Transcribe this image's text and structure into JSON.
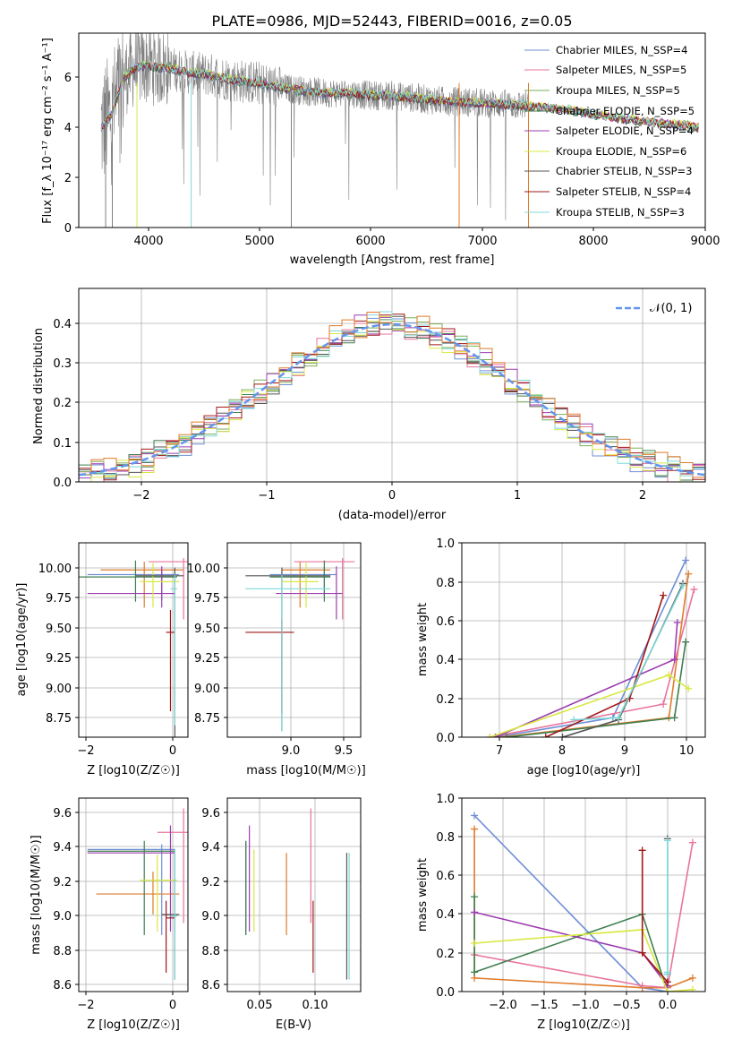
{
  "title": "PLATE=0986, MJD=52443, FIBERID=0016, z=0.05",
  "colors": {
    "chabrier_miles": "#6f8fd6",
    "salpeter_miles": "#e8739c",
    "kroupa_miles": "#7fae58",
    "chabrier_elodie": "#3f7f4f",
    "salpeter_elodie": "#9c3cb0",
    "kroupa_elodie": "#d8e840",
    "chabrier_stelib": "#555555",
    "salpeter_stelib": "#a01818",
    "kroupa_stelib": "#7fd8d8",
    "data_spectrum": "#808080",
    "normal_curve": "#6495ed",
    "orange_series": "#e07b2a"
  },
  "chart_data": [
    {
      "id": "spectrum",
      "type": "line",
      "xlabel": "wavelength [Angstrom, rest frame]",
      "ylabel": "Flux [f_λ 10⁻¹⁷ erg cm⁻² s⁻¹ A⁻¹]",
      "xlim": [
        3400,
        9000
      ],
      "ylim": [
        0,
        7.8
      ],
      "xticks": [
        "4000",
        "5000",
        "6000",
        "7000",
        "8000",
        "9000"
      ],
      "yticks": [
        "0",
        "2",
        "4",
        "6"
      ],
      "legend": [
        "Chabrier MILES, N_SSP=4",
        "Salpeter MILES, N_SSP=5",
        "Kroupa MILES, N_SSP=5",
        "Chabrier ELODIE, N_SSP=5",
        "Salpeter ELODIE, N_SSP=4",
        "Kroupa ELODIE, N_SSP=6",
        "Chabrier STELIB, N_SSP=3",
        "Salpeter STELIB, N_SSP=4",
        "Kroupa STELIB, N_SSP=3"
      ],
      "legend_placement": "upper-right",
      "model_continuum": {
        "x": [
          3600,
          3700,
          3800,
          3900,
          4000,
          4200,
          4400,
          4600,
          4800,
          5000,
          5200,
          5400,
          5600,
          5800,
          6000,
          6200,
          6400,
          6600,
          6800,
          7000,
          7200,
          7400,
          7600,
          7800,
          8000,
          8200,
          8400,
          8600,
          8800,
          8950
        ],
        "y": [
          4.0,
          4.6,
          6.0,
          6.4,
          6.5,
          6.4,
          6.2,
          6.1,
          5.9,
          5.8,
          5.6,
          5.5,
          5.4,
          5.4,
          5.3,
          5.3,
          5.2,
          5.1,
          5.05,
          5.0,
          4.95,
          4.9,
          4.8,
          4.7,
          4.55,
          4.4,
          4.3,
          4.2,
          4.1,
          4.0
        ]
      }
    },
    {
      "id": "residuals",
      "type": "histogram",
      "xlabel": "(data-model)/error",
      "ylabel": "Normed distribution",
      "xlim": [
        -2.5,
        2.5
      ],
      "ylim": [
        0,
        0.49
      ],
      "xticks": [
        "−2",
        "−1",
        "0",
        "1",
        "2"
      ],
      "yticks": [
        "0.0",
        "0.1",
        "0.2",
        "0.3",
        "0.4"
      ],
      "legend": [
        "𝒩(0, 1)"
      ],
      "legend_placement": "upper-right",
      "grid": true
    },
    {
      "id": "age_vs_Z",
      "type": "scatter",
      "xlabel": "Z [log10(Z/Z☉)]",
      "ylabel": "age  [log10(age/yr)]",
      "xlim": [
        -2.2,
        0.3
      ],
      "ylim": [
        8.6,
        10.25
      ],
      "xticks": [
        "−2",
        "0"
      ],
      "yticks": [
        "8.75",
        "9.00",
        "9.25",
        "9.50",
        "9.75",
        "10.00"
      ],
      "grid": true
    },
    {
      "id": "age_vs_mass",
      "type": "scatter",
      "xlabel": "mass [log10(M/M☉)]",
      "xlim": [
        8.55,
        9.65
      ],
      "ylim": [
        8.6,
        10.25
      ],
      "xticks": [
        "9.0",
        "9.5"
      ],
      "yticks": [
        "8.75",
        "9.00",
        "9.25",
        "9.50",
        "9.75",
        "10.00"
      ],
      "grid": true
    },
    {
      "id": "mass_weight_vs_age",
      "type": "line",
      "xlabel": "age  [log10(age/yr)]",
      "ylabel": "mass weight",
      "xlim": [
        6.0,
        10.35
      ],
      "ylim": [
        0,
        1.0
      ],
      "xticks": [
        "7",
        "8",
        "9",
        "10"
      ],
      "yticks": [
        "0.0",
        "0.2",
        "0.4",
        "0.6",
        "0.8",
        "1.0"
      ],
      "grid": true,
      "series": [
        {
          "color_key": "chabrier_miles",
          "x": [
            6.6,
            8.7,
            10.0
          ],
          "y": [
            0.0,
            0.1,
            0.91
          ]
        },
        {
          "color_key": "orange_series",
          "x": [
            6.7,
            9.7,
            10.05
          ],
          "y": [
            0.0,
            0.1,
            0.84
          ]
        },
        {
          "color_key": "salpeter_miles",
          "x": [
            6.5,
            9.6,
            10.15
          ],
          "y": [
            0.0,
            0.17,
            0.76
          ]
        },
        {
          "color_key": "chabrier_elodie",
          "x": [
            6.8,
            9.8,
            10.0
          ],
          "y": [
            0.0,
            0.1,
            0.49
          ]
        },
        {
          "color_key": "salpeter_elodie",
          "x": [
            6.6,
            9.8,
            9.85
          ],
          "y": [
            0.0,
            0.4,
            0.59
          ]
        },
        {
          "color_key": "kroupa_elodie",
          "x": [
            6.5,
            9.7,
            10.05
          ],
          "y": [
            0.0,
            0.32,
            0.25
          ]
        },
        {
          "color_key": "chabrier_stelib",
          "x": [
            7.8,
            8.8,
            9.95
          ],
          "y": [
            0.0,
            0.09,
            0.79
          ]
        },
        {
          "color_key": "salpeter_stelib",
          "x": [
            7.5,
            9.0,
            9.6
          ],
          "y": [
            0.0,
            0.2,
            0.73
          ]
        },
        {
          "color_key": "kroupa_stelib",
          "x": [
            8.0,
            8.8,
            9.95
          ],
          "y": [
            0.09,
            0.1,
            0.78
          ]
        }
      ]
    },
    {
      "id": "mass_vs_Z",
      "type": "scatter",
      "xlabel": "Z [log10(Z/Z☉)]",
      "ylabel": "mass [log10(M/M☉)]",
      "xlim": [
        -2.2,
        0.3
      ],
      "ylim": [
        8.55,
        9.68
      ],
      "xticks": [
        "−2",
        "0"
      ],
      "yticks": [
        "8.6",
        "8.8",
        "9.0",
        "9.2",
        "9.4",
        "9.6"
      ],
      "grid": true
    },
    {
      "id": "mass_vs_ebv",
      "type": "scatter",
      "xlabel": "E(B-V)",
      "xlim": [
        0.03,
        0.145
      ],
      "ylim": [
        8.55,
        9.68
      ],
      "xticks": [
        "0.05",
        "0.10"
      ],
      "yticks": [
        "8.6",
        "8.8",
        "9.0",
        "9.2",
        "9.4",
        "9.6"
      ],
      "grid": true
    },
    {
      "id": "mass_weight_vs_Z",
      "type": "line",
      "xlabel": "Z [log10(Z/Z☉)]",
      "ylabel": "mass weight",
      "xlim": [
        -2.45,
        0.45
      ],
      "ylim": [
        0,
        1.0
      ],
      "xticks": [
        "−2.0",
        "−1.5",
        "−1.0",
        "−0.5",
        "0.0"
      ],
      "yticks": [
        "0.0",
        "0.2",
        "0.4",
        "0.6",
        "0.8",
        "1.0"
      ],
      "grid": true,
      "series": [
        {
          "color_key": "chabrier_miles",
          "x": [
            -2.3,
            -0.3,
            0.0
          ],
          "y": [
            0.91,
            0.02,
            0.0
          ]
        },
        {
          "color_key": "orange_series",
          "x": [
            -2.3,
            -2.3,
            -0.3,
            0.0,
            0.3
          ],
          "y": [
            0.84,
            0.07,
            0.02,
            0.02,
            0.07
          ]
        },
        {
          "color_key": "salpeter_miles",
          "x": [
            -2.3,
            -0.3,
            0.0,
            0.3
          ],
          "y": [
            0.19,
            0.03,
            0.02,
            0.77
          ]
        },
        {
          "color_key": "chabrier_elodie",
          "x": [
            -2.3,
            -2.3,
            -0.3,
            0.0
          ],
          "y": [
            0.49,
            0.1,
            0.4,
            0.0
          ]
        },
        {
          "color_key": "salpeter_elodie",
          "x": [
            -2.3,
            -0.3,
            0.0
          ],
          "y": [
            0.41,
            0.2,
            0.03
          ]
        },
        {
          "color_key": "kroupa_elodie",
          "x": [
            -2.3,
            -0.3,
            0.0,
            0.3
          ],
          "y": [
            0.25,
            0.32,
            0.0,
            0.01
          ]
        },
        {
          "color_key": "chabrier_stelib",
          "x": [
            0.0,
            0.0
          ],
          "y": [
            0.79,
            0.09
          ]
        },
        {
          "color_key": "salpeter_stelib",
          "x": [
            -0.3,
            -0.3,
            0.0
          ],
          "y": [
            0.73,
            0.2,
            0.05
          ]
        },
        {
          "color_key": "kroupa_stelib",
          "x": [
            0.0,
            0.0,
            0.0
          ],
          "y": [
            0.78,
            0.1,
            0.09
          ]
        }
      ]
    }
  ]
}
